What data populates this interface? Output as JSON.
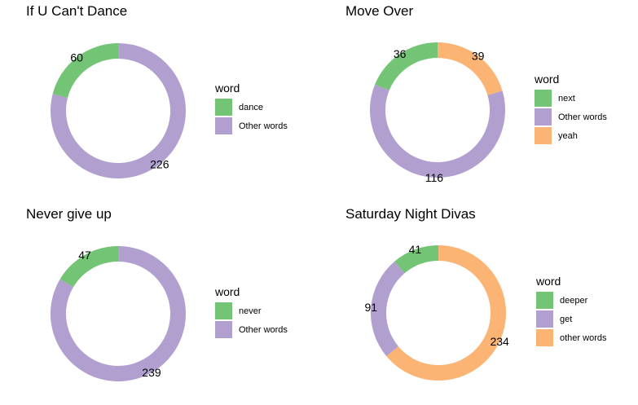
{
  "chart_data": [
    {
      "type": "pie",
      "title": "If U Can't Dance",
      "legend_title": "word",
      "legend_position": "right",
      "slices": [
        {
          "label": "dance",
          "value": 60,
          "color": "#74C476"
        },
        {
          "label": "Other words",
          "value": 226,
          "color": "#B1A0CF"
        }
      ]
    },
    {
      "type": "pie",
      "title": "Move Over",
      "legend_title": "word",
      "legend_position": "right",
      "slices": [
        {
          "label": "next",
          "value": 36,
          "color": "#74C476"
        },
        {
          "label": "Other words",
          "value": 116,
          "color": "#B1A0CF"
        },
        {
          "label": "yeah",
          "value": 39,
          "color": "#FBB474"
        }
      ]
    },
    {
      "type": "pie",
      "title": "Never give up",
      "legend_title": "word",
      "legend_position": "right",
      "slices": [
        {
          "label": "never",
          "value": 47,
          "color": "#74C476"
        },
        {
          "label": "Other words",
          "value": 239,
          "color": "#B1A0CF"
        }
      ]
    },
    {
      "type": "pie",
      "title": "Saturday Night Divas",
      "legend_title": "word",
      "legend_position": "right",
      "slices": [
        {
          "label": "deeper",
          "value": 41,
          "color": "#74C476"
        },
        {
          "label": "get",
          "value": 91,
          "color": "#B1A0CF"
        },
        {
          "label": "other words",
          "value": 234,
          "color": "#FBB474"
        }
      ]
    }
  ]
}
